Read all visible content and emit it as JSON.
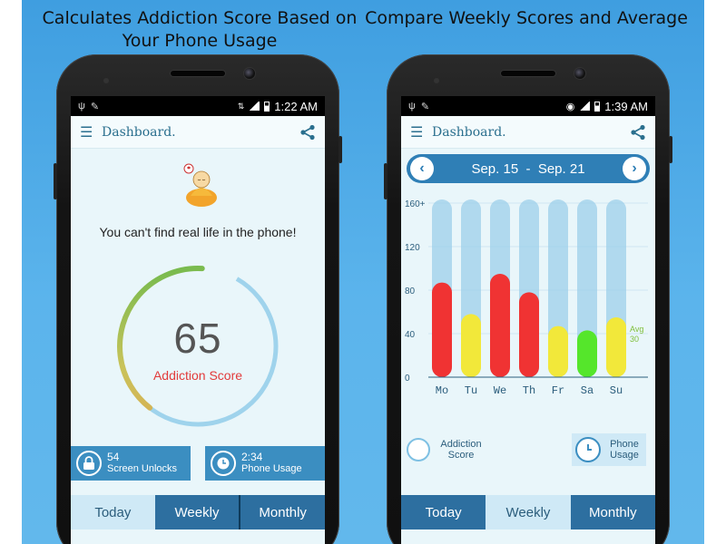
{
  "captions": {
    "left": "Calculates Addiction Score Based on Your Phone Usage",
    "right": "Compare Weekly Scores and Average"
  },
  "phone_left": {
    "status_time": "1:22 AM",
    "app_title": "Dashboard.",
    "quote": "You can't find real life in the phone!",
    "score": "65",
    "score_label": "Addiction Score",
    "gauge_progress": 0.65,
    "stats": {
      "unlocks_value": "54",
      "unlocks_label": "Screen Unlocks",
      "usage_value": "2:34",
      "usage_label": "Phone Usage"
    },
    "tabs": [
      "Today",
      "Weekly",
      "Monthly"
    ],
    "active_tab": "Today"
  },
  "phone_right": {
    "status_time": "1:39 AM",
    "app_title": "Dashboard.",
    "week_range": "Sep. 15  -  Sep. 21",
    "legend": {
      "score_label": "Addiction Score",
      "usage_label": "Phone Usage"
    },
    "tabs": [
      "Today",
      "Weekly",
      "Monthly"
    ],
    "active_tab": "Weekly",
    "colors": {
      "high": "#f03333",
      "mid": "#f2e83a",
      "low": "#55e62b"
    }
  },
  "chart_data": {
    "type": "bar",
    "categories": [
      "Mo",
      "Tu",
      "We",
      "Th",
      "Fr",
      "Sa",
      "Su"
    ],
    "values": [
      87,
      58,
      95,
      78,
      47,
      43,
      55
    ],
    "ylim": [
      0,
      160
    ],
    "yticks": [
      "0",
      "40",
      "80",
      "120",
      "160+"
    ],
    "average_label": "Avg",
    "average": 30
  }
}
